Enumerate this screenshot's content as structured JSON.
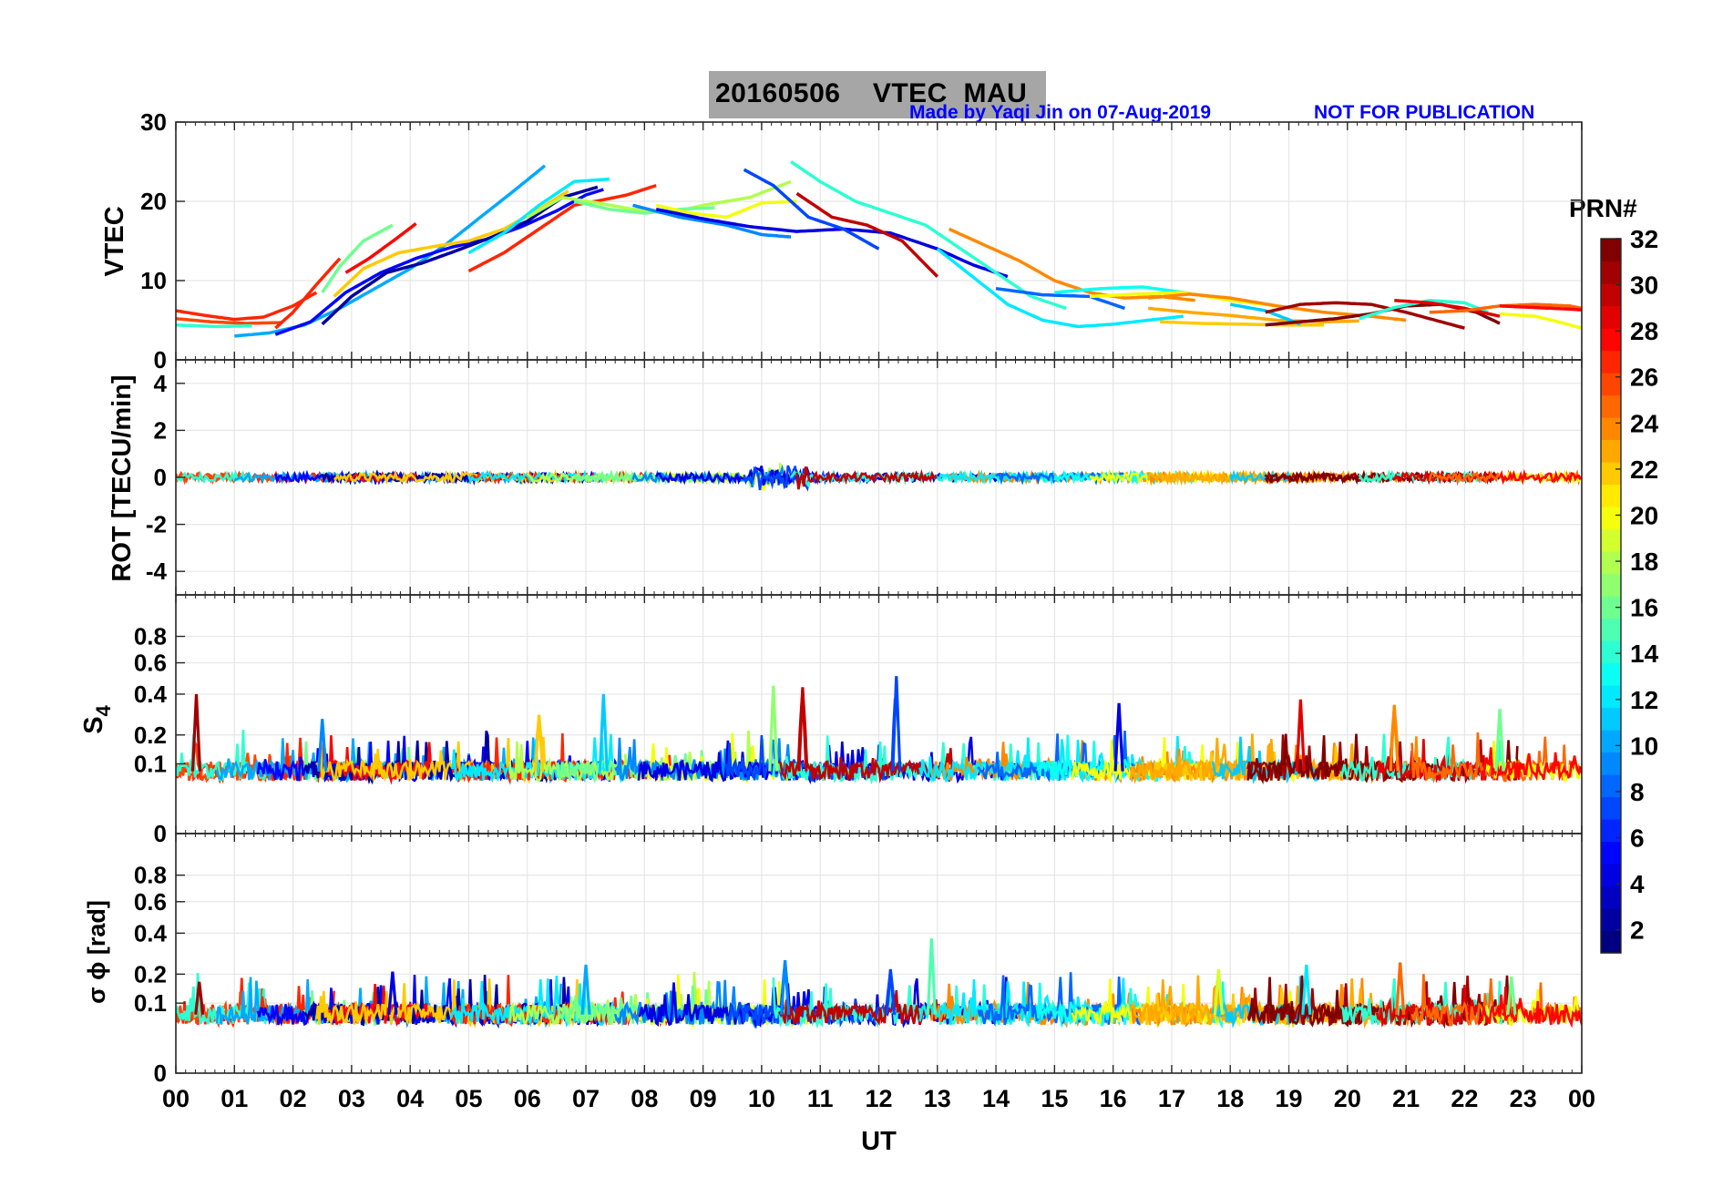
{
  "title": {
    "date": "20160506",
    "product": "VTEC",
    "station": "MAU",
    "credit": "Made by Yaqi Jin on 07-Aug-2019",
    "notice": "NOT FOR PUBLICATION",
    "box_color": "#a6a6a6"
  },
  "chart_data": [
    {
      "type": "line",
      "panel": "vtec",
      "ylabel": "VTEC",
      "ylim": [
        0,
        30
      ],
      "yticks": [
        0,
        10,
        20,
        30
      ],
      "grid": true,
      "series_by_prn": [
        {
          "prn": 27,
          "x": [
            0.0,
            0.5,
            1.0,
            1.5,
            2.0,
            2.4
          ],
          "y": [
            6.2,
            5.6,
            5.1,
            5.4,
            6.8,
            8.5
          ]
        },
        {
          "prn": 26,
          "x": [
            0.0,
            0.6,
            1.2,
            1.8
          ],
          "y": [
            5.2,
            4.8,
            4.6,
            4.7
          ]
        },
        {
          "prn": 14,
          "x": [
            0.0,
            0.7,
            1.3
          ],
          "y": [
            4.4,
            4.2,
            4.3
          ]
        },
        {
          "prn": 27,
          "x": [
            1.7,
            2.0,
            2.4,
            2.8
          ],
          "y": [
            4.0,
            6.0,
            9.5,
            12.8
          ]
        },
        {
          "prn": 16,
          "x": [
            2.5,
            2.8,
            3.2,
            3.7
          ],
          "y": [
            8.5,
            11.8,
            15.0,
            17.0
          ]
        },
        {
          "prn": 10,
          "x": [
            1.0,
            1.6,
            2.2,
            2.8,
            3.4,
            4.0,
            4.6,
            5.2,
            5.8,
            6.3
          ],
          "y": [
            3.0,
            3.4,
            4.4,
            6.5,
            9.0,
            11.5,
            14.5,
            18.0,
            21.5,
            24.5
          ]
        },
        {
          "prn": 5,
          "x": [
            1.7,
            2.3,
            2.9,
            3.5,
            4.1,
            4.7,
            5.3,
            5.9,
            6.5,
            7.0,
            7.3
          ],
          "y": [
            3.2,
            4.8,
            8.5,
            11.0,
            12.8,
            14.2,
            15.2,
            16.8,
            18.8,
            20.8,
            21.5
          ]
        },
        {
          "prn": 2,
          "x": [
            2.5,
            3.0,
            3.6,
            4.2,
            4.8,
            5.4,
            6.0,
            6.6,
            7.2
          ],
          "y": [
            4.5,
            8.0,
            11.0,
            12.2,
            13.8,
            15.5,
            17.5,
            20.5,
            21.8
          ]
        },
        {
          "prn": 28,
          "x": [
            2.9,
            3.3,
            3.8,
            4.1
          ],
          "y": [
            11.0,
            12.8,
            15.5,
            17.2
          ]
        },
        {
          "prn": 22,
          "x": [
            2.7,
            3.2,
            3.8,
            4.4,
            5.0,
            5.6,
            6.2,
            6.7
          ],
          "y": [
            8.0,
            11.5,
            13.5,
            14.3,
            15.0,
            16.5,
            19.0,
            21.3
          ]
        },
        {
          "prn": 27,
          "x": [
            5.0,
            5.6,
            6.2,
            6.8,
            7.3,
            7.7,
            8.2
          ],
          "y": [
            11.2,
            13.5,
            16.5,
            19.5,
            20.2,
            20.8,
            22.0
          ]
        },
        {
          "prn": 12,
          "x": [
            5.0,
            5.6,
            6.2,
            6.8,
            7.4
          ],
          "y": [
            13.5,
            16.0,
            19.5,
            22.5,
            22.8
          ]
        },
        {
          "prn": 18,
          "x": [
            6.0,
            6.6,
            7.2,
            7.8,
            8.4,
            9.0,
            9.8,
            10.5
          ],
          "y": [
            18.0,
            20.5,
            19.8,
            19.0,
            18.5,
            19.5,
            20.5,
            22.5
          ]
        },
        {
          "prn": 16,
          "x": [
            6.8,
            7.4,
            8.0,
            8.6,
            9.2
          ],
          "y": [
            20.0,
            19.0,
            18.5,
            19.0,
            19.2
          ]
        },
        {
          "prn": 20,
          "x": [
            8.2,
            8.8,
            9.4,
            10.0,
            10.6
          ],
          "y": [
            19.5,
            18.5,
            18.0,
            19.8,
            20.0
          ]
        },
        {
          "prn": 9,
          "x": [
            7.8,
            8.6,
            9.4,
            10.0,
            10.5
          ],
          "y": [
            19.5,
            18.0,
            17.0,
            15.8,
            15.5
          ]
        },
        {
          "prn": 4,
          "x": [
            8.2,
            9.0,
            9.8,
            10.6,
            11.4,
            12.2,
            13.0,
            13.6,
            14.2
          ],
          "y": [
            19.0,
            17.8,
            16.8,
            16.2,
            16.5,
            16.0,
            14.0,
            12.0,
            10.5
          ]
        },
        {
          "prn": 7,
          "x": [
            9.7,
            10.2,
            10.8,
            11.4,
            12.0
          ],
          "y": [
            24.0,
            22.0,
            18.0,
            16.5,
            14.0
          ]
        },
        {
          "prn": 14,
          "x": [
            10.5,
            11.0,
            11.6,
            12.2,
            12.8,
            13.4,
            14.0,
            14.6,
            15.2
          ],
          "y": [
            25.0,
            22.5,
            20.0,
            18.5,
            17.0,
            14.0,
            11.0,
            8.0,
            6.5
          ]
        },
        {
          "prn": 30,
          "x": [
            10.6,
            11.2,
            11.8,
            12.4,
            13.0
          ],
          "y": [
            21.0,
            18.0,
            17.0,
            15.0,
            10.5
          ]
        },
        {
          "prn": 24,
          "x": [
            13.2,
            13.8,
            14.4,
            15.0,
            15.6,
            16.2,
            16.8,
            17.4
          ],
          "y": [
            16.5,
            14.5,
            12.5,
            10.0,
            8.5,
            7.8,
            8.0,
            7.5
          ]
        },
        {
          "prn": 12,
          "x": [
            13.0,
            13.6,
            14.2,
            14.8,
            15.4,
            16.0,
            16.6,
            17.2
          ],
          "y": [
            14.0,
            10.5,
            7.0,
            5.0,
            4.2,
            4.5,
            5.0,
            5.5
          ]
        },
        {
          "prn": 8,
          "x": [
            14.0,
            14.8,
            15.6,
            16.2
          ],
          "y": [
            9.0,
            8.2,
            8.0,
            6.5
          ]
        },
        {
          "prn": 13,
          "x": [
            15.0,
            15.8,
            16.5,
            17.2,
            17.8
          ],
          "y": [
            8.5,
            9.0,
            9.2,
            8.5,
            7.8
          ]
        },
        {
          "prn": 20,
          "x": [
            15.6,
            16.4,
            17.2,
            18.0,
            18.8
          ],
          "y": [
            8.0,
            8.3,
            8.5,
            7.5,
            6.8
          ]
        },
        {
          "prn": 24,
          "x": [
            16.6,
            17.3,
            18.0,
            18.8,
            19.6,
            20.4,
            21.0
          ],
          "y": [
            7.8,
            8.3,
            7.8,
            6.8,
            6.0,
            5.5,
            5.0
          ]
        },
        {
          "prn": 22,
          "x": [
            16.8,
            17.5,
            18.2,
            18.9,
            19.6
          ],
          "y": [
            4.8,
            4.6,
            4.5,
            4.4,
            4.4
          ]
        },
        {
          "prn": 23,
          "x": [
            16.6,
            17.3,
            18.0,
            18.8,
            19.6,
            20.2
          ],
          "y": [
            6.5,
            6.0,
            5.6,
            5.0,
            4.8,
            4.9
          ]
        },
        {
          "prn": 11,
          "x": [
            18.0,
            18.6,
            19.2
          ],
          "y": [
            7.0,
            6.2,
            4.5
          ]
        },
        {
          "prn": 31,
          "x": [
            18.6,
            19.2,
            19.8,
            20.4,
            21.0,
            21.6,
            22.0
          ],
          "y": [
            6.0,
            7.0,
            7.2,
            7.0,
            6.0,
            4.8,
            4.0
          ]
        },
        {
          "prn": 32,
          "x": [
            18.6,
            19.2,
            19.8,
            20.4,
            21.0,
            21.6,
            22.2,
            22.6
          ],
          "y": [
            4.4,
            4.8,
            5.2,
            5.8,
            6.8,
            7.0,
            6.0,
            4.6
          ]
        },
        {
          "prn": 14,
          "x": [
            20.2,
            20.8,
            21.4,
            22.0,
            22.4
          ],
          "y": [
            5.2,
            6.6,
            7.5,
            7.2,
            6.0
          ]
        },
        {
          "prn": 29,
          "x": [
            20.8,
            21.4,
            22.0,
            22.6
          ],
          "y": [
            7.5,
            7.2,
            6.5,
            5.5
          ]
        },
        {
          "prn": 25,
          "x": [
            21.4,
            22.0,
            22.6,
            23.2,
            23.8,
            24.0
          ],
          "y": [
            6.0,
            6.2,
            6.8,
            7.0,
            6.8,
            6.5
          ]
        },
        {
          "prn": 20,
          "x": [
            22.6,
            23.2,
            23.6,
            24.0
          ],
          "y": [
            5.8,
            5.5,
            4.8,
            4.0
          ]
        },
        {
          "prn": 28,
          "x": [
            22.6,
            23.2,
            23.8,
            24.0
          ],
          "y": [
            6.8,
            6.6,
            6.4,
            6.3
          ]
        }
      ]
    },
    {
      "type": "line",
      "panel": "rot",
      "ylabel": "ROT [TECU/min]",
      "ylim": [
        -5,
        5
      ],
      "yticks": [
        -4,
        -2,
        0,
        2,
        4
      ],
      "grid": true,
      "description_values": {
        "baseline": 0,
        "typical_amplitude": 0.3,
        "max_amplitude": 0.8
      }
    },
    {
      "type": "line",
      "panel": "s4",
      "ylabel": "S4",
      "ylim": [
        0,
        1
      ],
      "yticks": [
        0,
        0.1,
        0.2,
        0.4,
        0.6,
        0.8
      ],
      "ytick_labels": [
        "0",
        "0.1",
        "0.2",
        "0.4",
        "0.6",
        "0.8"
      ],
      "grid": true,
      "peaks": [
        {
          "x": 0.35,
          "y": 0.4,
          "prn": 31
        },
        {
          "x": 2.5,
          "y": 0.27,
          "prn": 9
        },
        {
          "x": 6.2,
          "y": 0.29,
          "prn": 22
        },
        {
          "x": 7.3,
          "y": 0.4,
          "prn": 11
        },
        {
          "x": 10.2,
          "y": 0.45,
          "prn": 17
        },
        {
          "x": 10.7,
          "y": 0.44,
          "prn": 30
        },
        {
          "x": 12.3,
          "y": 0.51,
          "prn": 7
        },
        {
          "x": 16.1,
          "y": 0.35,
          "prn": 4
        },
        {
          "x": 19.2,
          "y": 0.37,
          "prn": 29
        },
        {
          "x": 20.8,
          "y": 0.34,
          "prn": 24
        },
        {
          "x": 22.6,
          "y": 0.32,
          "prn": 16
        }
      ],
      "baseline": 0.08
    },
    {
      "type": "line",
      "panel": "sigma_phi",
      "ylabel": "σ ϕ [rad]",
      "ylim": [
        0,
        1
      ],
      "yticks": [
        0,
        0.1,
        0.2,
        0.4,
        0.6,
        0.8
      ],
      "ytick_labels": [
        "0",
        "0.1",
        "0.2",
        "0.4",
        "0.6",
        "0.8"
      ],
      "grid": true,
      "peaks": [
        {
          "x": 0.4,
          "y": 0.17,
          "prn": 31
        },
        {
          "x": 3.7,
          "y": 0.21,
          "prn": 4
        },
        {
          "x": 7.0,
          "y": 0.24,
          "prn": 10
        },
        {
          "x": 10.4,
          "y": 0.26,
          "prn": 9
        },
        {
          "x": 12.2,
          "y": 0.22,
          "prn": 7
        },
        {
          "x": 12.9,
          "y": 0.37,
          "prn": 15
        },
        {
          "x": 17.8,
          "y": 0.22,
          "prn": 19
        },
        {
          "x": 19.3,
          "y": 0.24,
          "prn": 12
        },
        {
          "x": 20.9,
          "y": 0.25,
          "prn": 25
        },
        {
          "x": 22.8,
          "y": 0.19,
          "prn": 16
        }
      ],
      "baseline": 0.07
    }
  ],
  "xaxis": {
    "label": "UT",
    "tick_labels": [
      "00",
      "01",
      "02",
      "03",
      "04",
      "05",
      "06",
      "07",
      "08",
      "09",
      "10",
      "11",
      "12",
      "13",
      "14",
      "15",
      "16",
      "17",
      "18",
      "19",
      "20",
      "21",
      "22",
      "23",
      "00"
    ]
  },
  "colorbar": {
    "title": "PRN#",
    "range": [
      1,
      32
    ],
    "tick_labels": [
      "2",
      "4",
      "6",
      "8",
      "10",
      "12",
      "14",
      "16",
      "18",
      "20",
      "22",
      "24",
      "26",
      "28",
      "30",
      "32"
    ],
    "colormap": "jet"
  }
}
